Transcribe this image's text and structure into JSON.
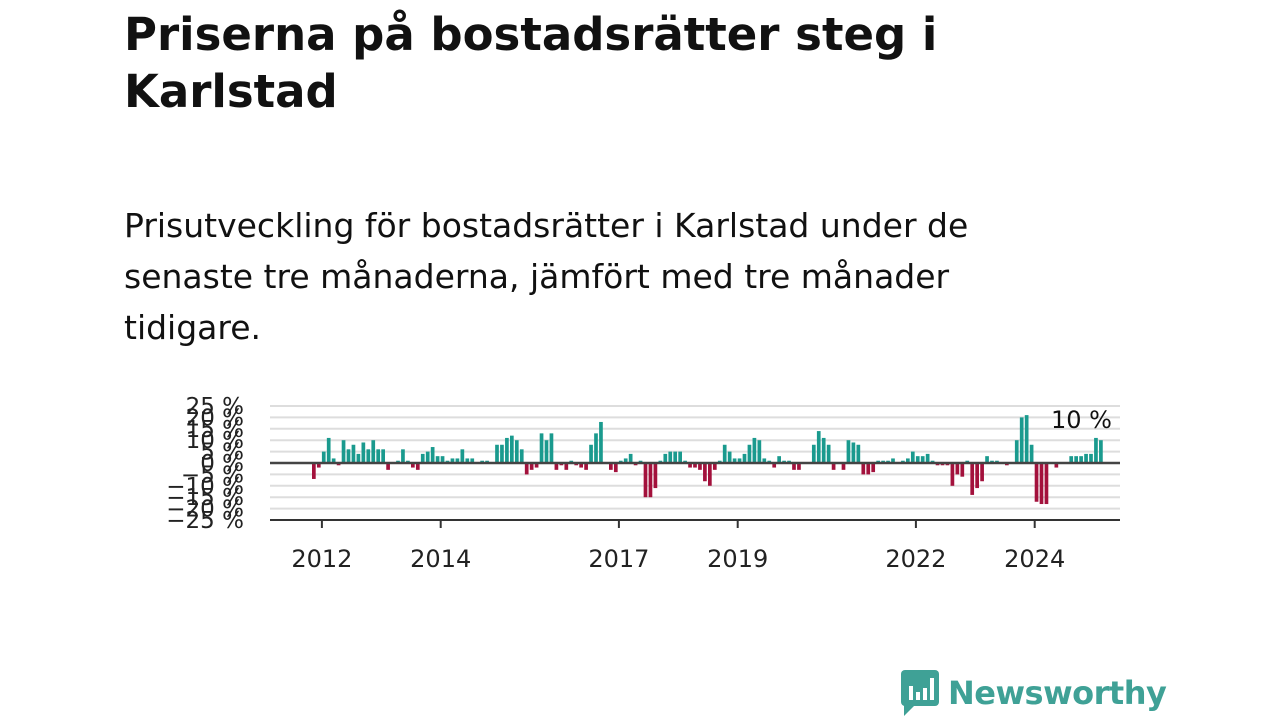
{
  "title": "Priserna på bostadsrätter steg i Karlstad",
  "subtitle": "Prisutveckling för bostadsrätter i Karlstad under de senaste tre månaderna, jämfört med tre månader tidigare.",
  "logo": {
    "text": "Newsworthy",
    "icon": "newsworthy-logo-icon"
  },
  "colors": {
    "positive": "#1a9a8e",
    "negative": "#a3113c",
    "grid": "#dddddd",
    "zero": "#444444",
    "axis": "#333333"
  },
  "chart_data": {
    "type": "bar",
    "ylim": [
      -25,
      25
    ],
    "yticks": [
      {
        "v": 25,
        "label": "25 %"
      },
      {
        "v": 20,
        "label": "20 %"
      },
      {
        "v": 15,
        "label": "15 %"
      },
      {
        "v": 10,
        "label": "10 %"
      },
      {
        "v": 5,
        "label": "5 %"
      },
      {
        "v": 0,
        "label": "0 %"
      },
      {
        "v": -5,
        "label": "−5 %"
      },
      {
        "v": -10,
        "label": "−10 %"
      },
      {
        "v": -15,
        "label": "−15 %"
      },
      {
        "v": -20,
        "label": "−20 %"
      },
      {
        "v": -25,
        "label": "−25 %"
      }
    ],
    "xticks": [
      {
        "year": 2012,
        "label": "2012"
      },
      {
        "year": 2014,
        "label": "2014"
      },
      {
        "year": 2017,
        "label": "2017"
      },
      {
        "year": 2019,
        "label": "2019"
      },
      {
        "year": 2022,
        "label": "2022"
      },
      {
        "year": 2024,
        "label": "2024"
      }
    ],
    "x_start": "2011-11",
    "values": [
      -7,
      -2,
      5,
      11,
      2,
      -1,
      10,
      6,
      8,
      4,
      9,
      6,
      10,
      6,
      6,
      -3,
      0,
      1,
      6,
      1,
      -2,
      -3,
      4,
      5,
      7,
      3,
      3,
      1,
      2,
      2,
      6,
      2,
      2,
      0,
      1,
      1,
      0,
      8,
      8,
      11,
      12,
      10,
      6,
      -5,
      -3,
      -2,
      13,
      10,
      13,
      -3,
      -1,
      -3,
      1,
      -1,
      -2,
      -3,
      8,
      13,
      18,
      0,
      -3,
      -4,
      1,
      2,
      4,
      -1,
      1,
      -15,
      -15,
      -11,
      1,
      4,
      5,
      5,
      5,
      1,
      -2,
      -2,
      -3,
      -8,
      -10,
      -3,
      1,
      8,
      5,
      2,
      2,
      4,
      8,
      11,
      10,
      2,
      1,
      -2,
      3,
      1,
      1,
      -3,
      -3,
      0,
      0,
      8,
      14,
      11,
      8,
      -3,
      0,
      -3,
      10,
      9,
      8,
      -5,
      -5,
      -4,
      1,
      1,
      1,
      2,
      0,
      1,
      2,
      5,
      3,
      3,
      4,
      1,
      -1,
      -1,
      -1,
      -10,
      -5,
      -6,
      1,
      -14,
      -11,
      -8,
      3,
      1,
      1,
      0,
      -1,
      0,
      10,
      20,
      21,
      8,
      -17,
      -18,
      -18,
      0,
      -2,
      0,
      0,
      3,
      3,
      3,
      4,
      4,
      11,
      10
    ],
    "annotation": {
      "text": "10 %",
      "value": 10
    }
  }
}
